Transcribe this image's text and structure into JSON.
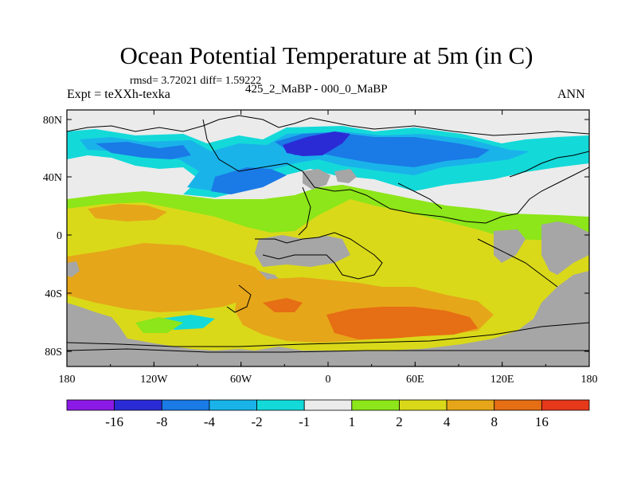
{
  "title": "Ocean Potential Temperature at 5m (in C)",
  "stats": "rmsd= 3.72021 diff= 1.59222",
  "experiment": "Expt = teXXh-texka",
  "subtitle": "425_2_MaBP - 000_0_MaBP",
  "season": "ANN",
  "map": {
    "lon_ticks": [
      "180",
      "120W",
      "60W",
      "0",
      "60E",
      "120E",
      "180"
    ],
    "lat_ticks": [
      "80N",
      "40N",
      "0",
      "40S",
      "80S"
    ],
    "missing_color": "#a6a6a6",
    "land_outline": "paleogeographic coastlines (black)"
  },
  "legend": {
    "colors": [
      "#8c1ae6",
      "#2b2bd6",
      "#1a7ae6",
      "#19b3ea",
      "#14d9d9",
      "#ebebeb",
      "#8ce619",
      "#d9d91a",
      "#e6a619",
      "#e66e14",
      "#e6381a"
    ],
    "labels": [
      "-16",
      "-8",
      "-4",
      "-2",
      "-1",
      "1",
      "2",
      "4",
      "8",
      "16"
    ]
  }
}
